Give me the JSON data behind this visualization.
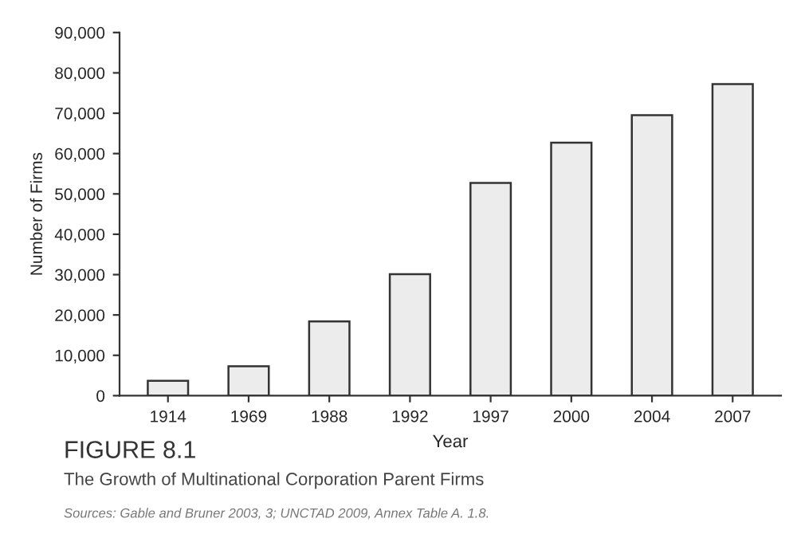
{
  "chart_data": {
    "type": "bar",
    "title": "FIGURE 8.1",
    "subtitle": "The Growth of Multinational Corporation Parent Firms",
    "xlabel": "Year",
    "ylabel": "Number of Firms",
    "categories": [
      "1914",
      "1969",
      "1988",
      "1992",
      "1997",
      "2000",
      "2004",
      "2007"
    ],
    "values": [
      3700,
      7300,
      18400,
      30100,
      52700,
      62700,
      69500,
      77200
    ],
    "color": "#ececec",
    "ylim": [
      0,
      90000
    ],
    "yticks": [
      {
        "value": 0,
        "label": "0"
      },
      {
        "value": 10000,
        "label": "10,000"
      },
      {
        "value": 20000,
        "label": "20,000"
      },
      {
        "value": 30000,
        "label": "30,000"
      },
      {
        "value": 40000,
        "label": "40,000"
      },
      {
        "value": 50000,
        "label": "50,000"
      },
      {
        "value": 60000,
        "label": "60,000"
      },
      {
        "value": 70000,
        "label": "70,000"
      },
      {
        "value": 80000,
        "label": "80,000"
      },
      {
        "value": 90000,
        "label": "90,000"
      }
    ],
    "annotations": [
      "Sources: Gable and Bruner 2003, 3; UNCTAD 2009, Annex Table A. 1.8."
    ],
    "grid": false,
    "legend": false
  }
}
